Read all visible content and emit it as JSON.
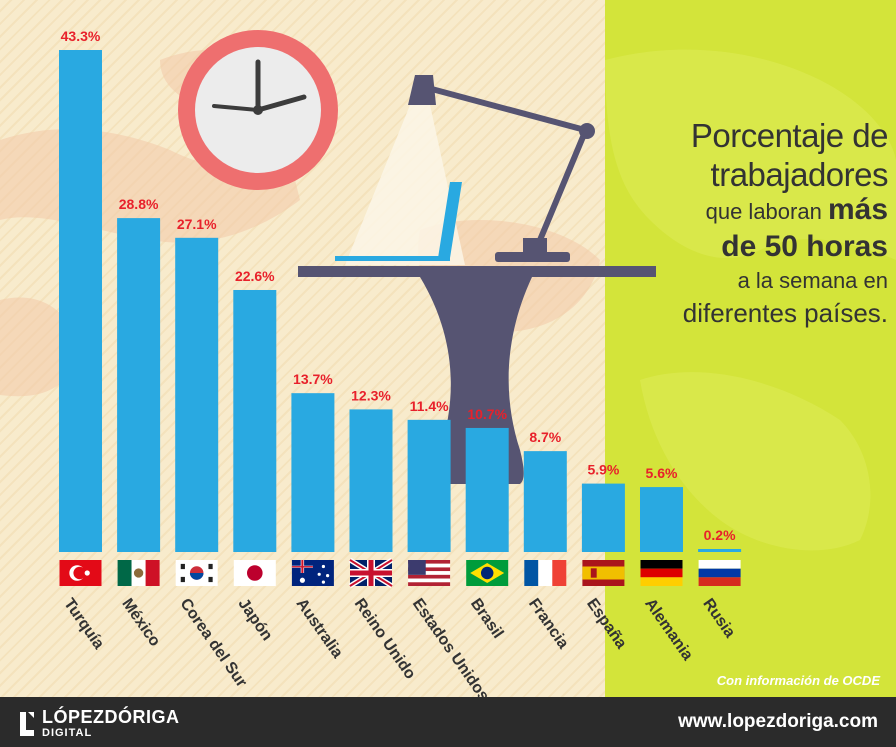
{
  "title": {
    "line1": "Porcentaje de",
    "line2": "trabajadores",
    "line3_pre": "que laboran",
    "line3_bold": "más",
    "line4": "de 50 horas",
    "line5": "a la semana en",
    "line6": "diferentes países."
  },
  "source": "Con información de OCDE",
  "footer": {
    "brand": "LÓPEZDÓRIGA",
    "brand_sub": "DIGITAL",
    "website": "www.lopezdoriga.com"
  },
  "colors": {
    "bar": "#29a9e1",
    "value_label": "#e8212b",
    "accent_panel": "#d3e43a"
  },
  "chart_data": {
    "type": "bar",
    "title": "Porcentaje de trabajadores que laboran más de 50 horas a la semana en diferentes países.",
    "xlabel": "",
    "ylabel": "",
    "ylim": [
      0,
      43.3
    ],
    "categories": [
      "Turquía",
      "México",
      "Corea del Sur",
      "Japón",
      "Australia",
      "Reino Unido",
      "Estados Unidos",
      "Brasil",
      "Francia",
      "España",
      "Alemania",
      "Rusia"
    ],
    "values": [
      43.3,
      28.8,
      27.1,
      22.6,
      13.7,
      12.3,
      11.4,
      10.7,
      8.7,
      5.9,
      5.6,
      0.2
    ],
    "value_labels": [
      "43.3%",
      "28.8%",
      "27.1%",
      "22.6%",
      "13.7%",
      "12.3%",
      "11.4%",
      "10.7%",
      "8.7%",
      "5.9%",
      "5.6%",
      "0.2%"
    ],
    "flags": [
      "turkey-flag",
      "mexico-flag",
      "south-korea-flag",
      "japan-flag",
      "australia-flag",
      "uk-flag",
      "usa-flag",
      "brazil-flag",
      "france-flag",
      "spain-flag",
      "germany-flag",
      "russia-flag"
    ]
  }
}
